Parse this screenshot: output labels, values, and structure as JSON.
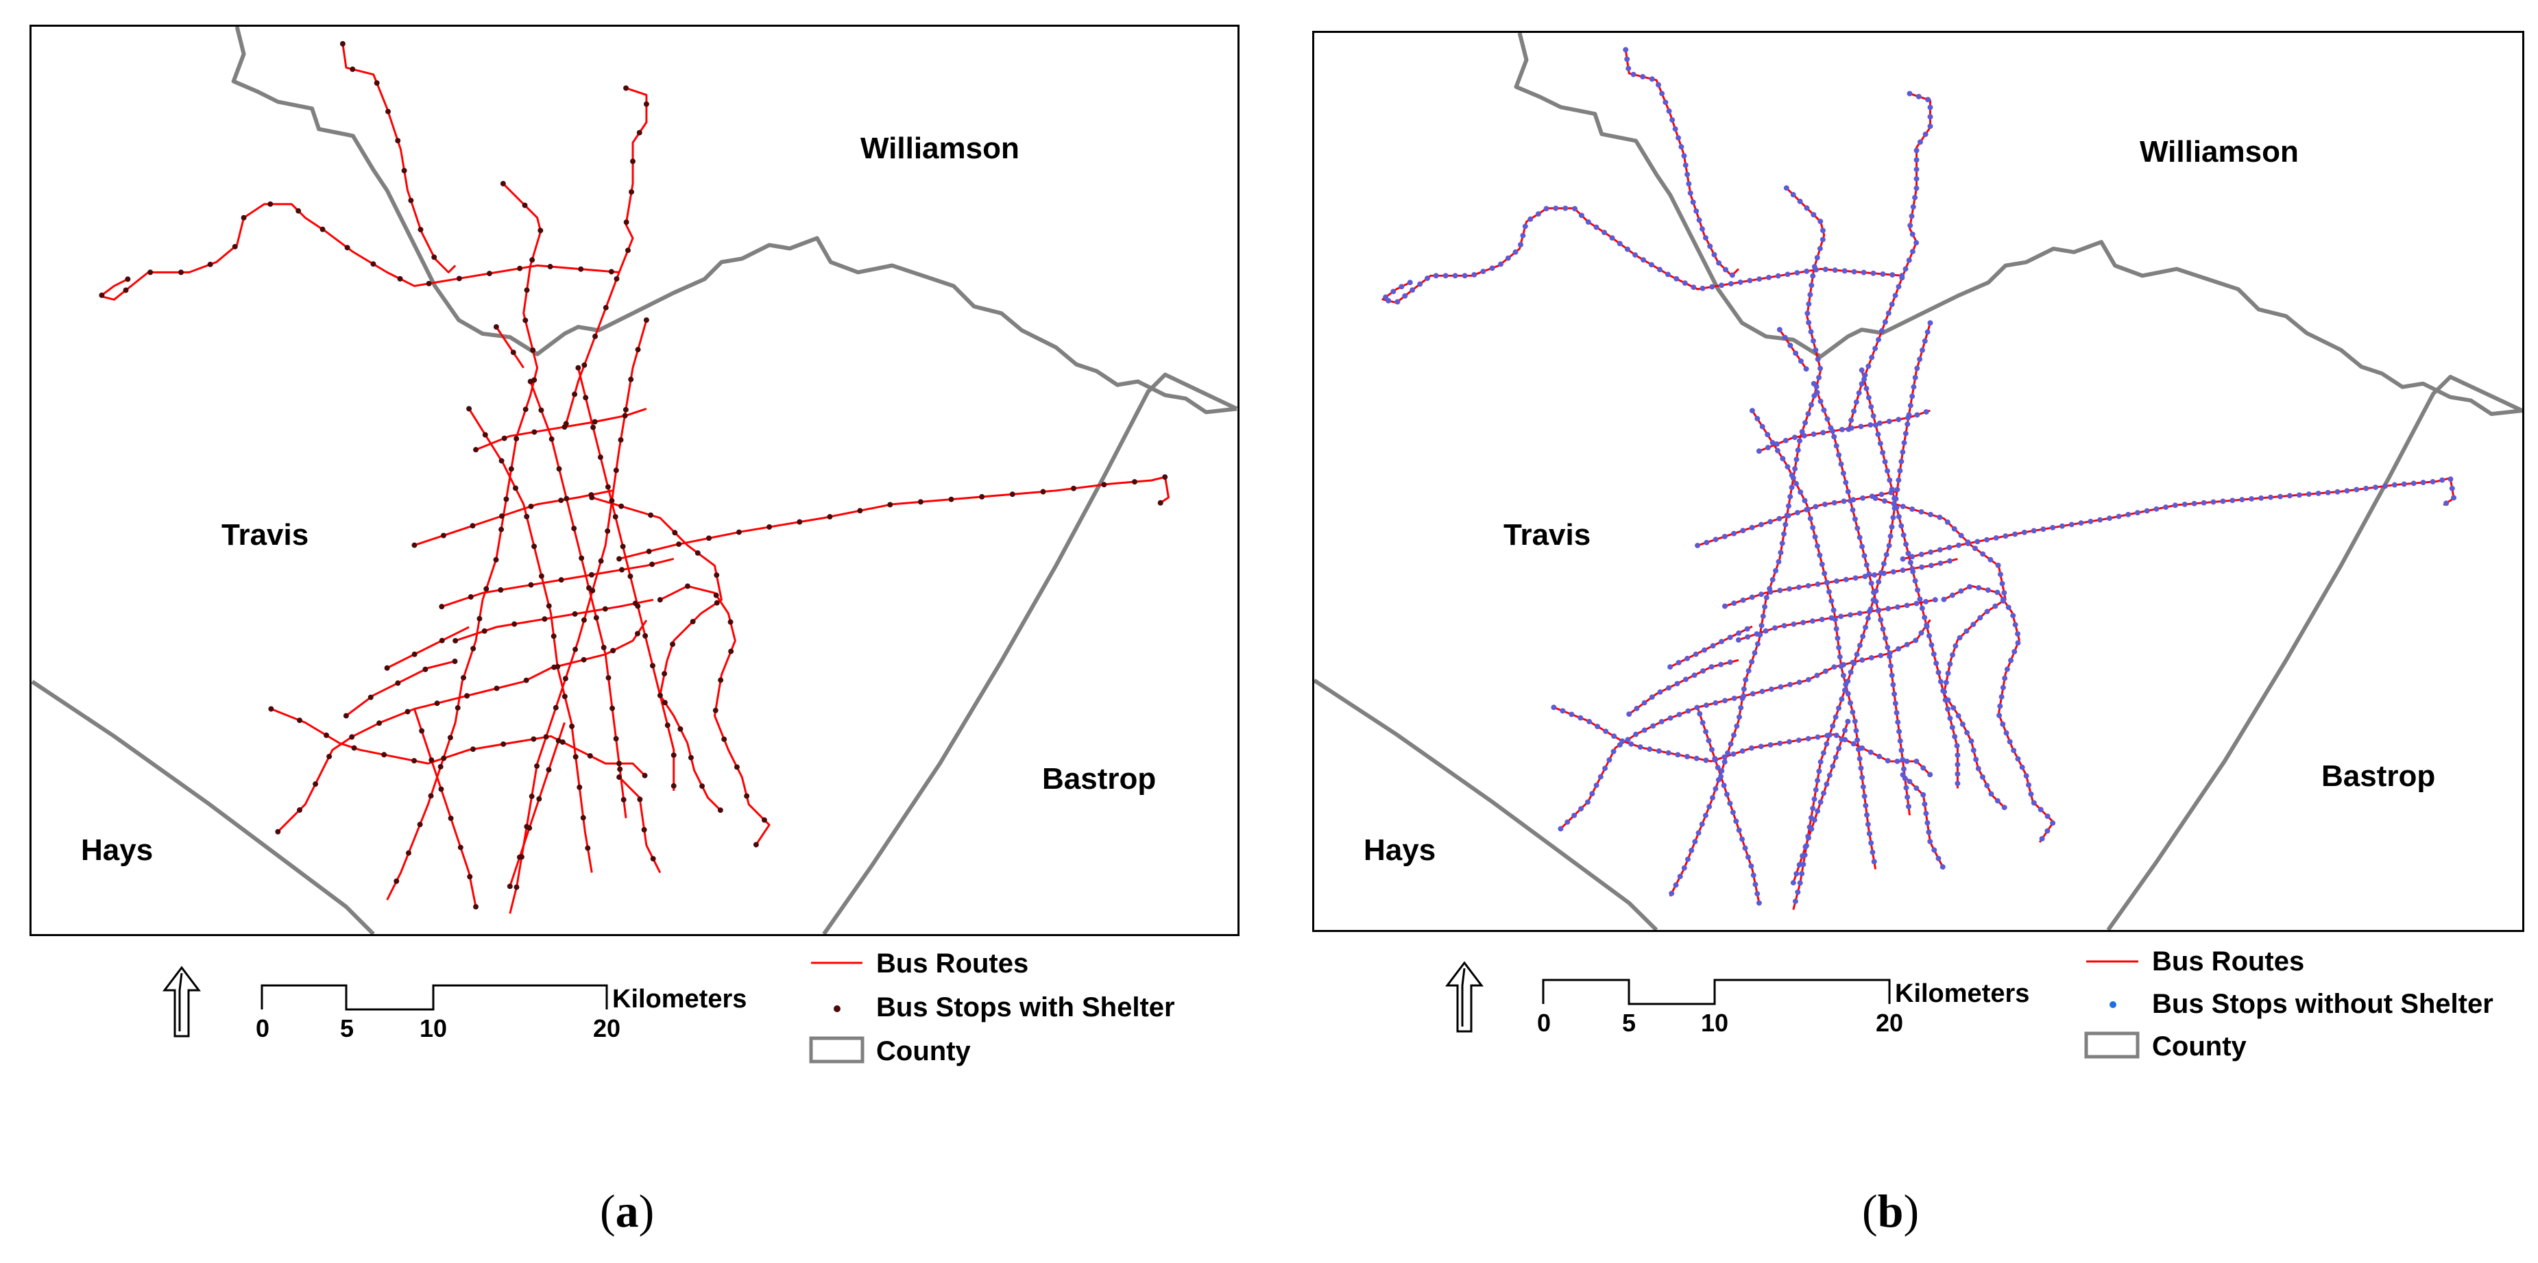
{
  "panels": [
    {
      "id": "a",
      "caption_open": "(",
      "caption_letter": "a",
      "caption_close": ")",
      "stop_color": "#4a0a0a",
      "counties": {
        "williamson": "Williamson",
        "travis": "Travis",
        "hays": "Hays",
        "bastrop": "Bastrop"
      },
      "legend": {
        "routes": "Bus Routes",
        "stops": "Bus Stops with Shelter",
        "county": "County"
      },
      "scale": {
        "unit": "Kilometers",
        "ticks": [
          "0",
          "5",
          "10",
          "20"
        ]
      }
    },
    {
      "id": "b",
      "caption_open": "(",
      "caption_letter": "b",
      "caption_close": ")",
      "stop_color": "#5b5bd6",
      "counties": {
        "williamson": "Williamson",
        "travis": "Travis",
        "hays": "Hays",
        "bastrop": "Bastrop"
      },
      "legend": {
        "routes": "Bus Routes",
        "stops": "Bus Stops without Shelter",
        "county": "County"
      },
      "scale": {
        "unit": "Kilometers",
        "ticks": [
          "0",
          "5",
          "10",
          "20"
        ]
      }
    }
  ],
  "colors": {
    "route": "#ff0000",
    "county": "#808080"
  },
  "icons": {
    "north": "north-arrow-icon"
  }
}
